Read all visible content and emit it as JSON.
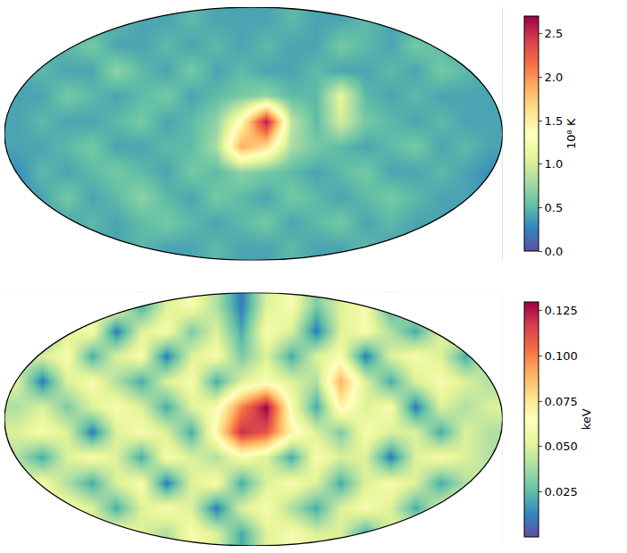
{
  "chart_data": [
    {
      "type": "heatmap",
      "tick_labels": false,
      "colorbar": {
        "title": "10⁸ K",
        "range": [
          0,
          2.7
        ],
        "ticks": [
          {
            "value": 0,
            "label": "0.0"
          },
          {
            "value": 0.5,
            "label": "0.5"
          },
          {
            "value": 1,
            "label": "1.0"
          },
          {
            "value": 1.5,
            "label": "1.5"
          },
          {
            "value": 2,
            "label": "2.0"
          },
          {
            "value": 2.5,
            "label": "2.5"
          }
        ]
      },
      "cells": [
        [
          0.3,
          0.3,
          0.4,
          0.4,
          0.5,
          0.4,
          0.4,
          0.5,
          0.4,
          0.4,
          0.4,
          0.5,
          0.4,
          0.4,
          0.5,
          0.4,
          0.4,
          0.3,
          0.3,
          0.3
        ],
        [
          0.3,
          0.4,
          0.5,
          0.6,
          0.4,
          0.4,
          0.5,
          0.4,
          0.5,
          0.4,
          0.5,
          0.4,
          0.4,
          0.6,
          0.5,
          0.4,
          0.6,
          0.5,
          0.4,
          0.3
        ],
        [
          0.4,
          0.5,
          0.4,
          0.4,
          0.7,
          0.5,
          0.4,
          0.6,
          0.4,
          0.5,
          0.4,
          0.4,
          0.5,
          0.4,
          0.4,
          0.5,
          0.4,
          0.6,
          0.5,
          0.4
        ],
        [
          0.4,
          0.4,
          0.6,
          0.5,
          0.4,
          0.5,
          0.6,
          0.4,
          0.5,
          0.6,
          0.7,
          0.5,
          0.5,
          1.1,
          0.5,
          0.4,
          0.5,
          0.4,
          0.4,
          0.4
        ],
        [
          0.4,
          0.5,
          0.4,
          0.4,
          0.5,
          0.6,
          0.4,
          0.5,
          0.7,
          1.4,
          2.6,
          0.9,
          0.5,
          1.0,
          0.6,
          0.5,
          0.4,
          0.5,
          0.4,
          0.4
        ],
        [
          0.4,
          0.4,
          0.5,
          0.6,
          0.4,
          0.4,
          0.5,
          0.5,
          0.8,
          1.9,
          1.6,
          0.8,
          0.6,
          0.5,
          0.4,
          0.5,
          0.6,
          0.4,
          0.5,
          0.4
        ],
        [
          0.3,
          0.5,
          0.4,
          0.5,
          0.6,
          0.5,
          0.4,
          0.6,
          0.5,
          0.7,
          0.6,
          0.5,
          0.4,
          0.5,
          0.6,
          0.4,
          0.4,
          0.5,
          0.4,
          0.3
        ],
        [
          0.3,
          0.4,
          0.6,
          0.4,
          0.5,
          0.7,
          0.5,
          0.4,
          0.6,
          0.5,
          0.4,
          0.6,
          0.5,
          0.4,
          0.5,
          0.6,
          0.5,
          0.4,
          0.4,
          0.3
        ],
        [
          0.3,
          0.4,
          0.4,
          0.5,
          0.4,
          0.5,
          0.6,
          0.5,
          0.4,
          0.5,
          0.6,
          0.4,
          0.5,
          0.6,
          0.4,
          0.5,
          0.4,
          0.4,
          0.3,
          0.3
        ],
        [
          0.3,
          0.3,
          0.4,
          0.4,
          0.4,
          0.5,
          0.4,
          0.4,
          0.5,
          0.4,
          0.4,
          0.5,
          0.4,
          0.4,
          0.5,
          0.4,
          0.4,
          0.3,
          0.3,
          0.3
        ]
      ]
    },
    {
      "type": "heatmap",
      "tick_labels": false,
      "colorbar": {
        "title": "keV",
        "range": [
          0,
          0.13
        ],
        "ticks": [
          0.025,
          {
            "value": 0.05,
            "label": "0.050"
          },
          0.075,
          {
            "value": 0.1,
            "label": "0.100"
          },
          0.125
        ]
      },
      "cells": [
        [
          0.04,
          0.05,
          0.03,
          0.05,
          0.06,
          0.02,
          0.05,
          0.06,
          0.04,
          0.01,
          0.05,
          0.06,
          0.03,
          0.05,
          0.06,
          0.02,
          0.05,
          0.04,
          0.05,
          0.04
        ],
        [
          0.05,
          0.02,
          0.05,
          0.06,
          0.01,
          0.05,
          0.06,
          0.03,
          0.05,
          0.02,
          0.06,
          0.05,
          0.01,
          0.05,
          0.06,
          0.04,
          0.02,
          0.05,
          0.06,
          0.04
        ],
        [
          0.04,
          0.05,
          0.06,
          0.02,
          0.05,
          0.06,
          0.01,
          0.05,
          0.06,
          0.03,
          0.05,
          0.02,
          0.05,
          0.06,
          0.01,
          0.05,
          0.06,
          0.05,
          0.02,
          0.05
        ],
        [
          0.05,
          0.01,
          0.05,
          0.06,
          0.04,
          0.02,
          0.05,
          0.06,
          0.02,
          0.05,
          0.06,
          0.05,
          0.04,
          0.09,
          0.05,
          0.02,
          0.05,
          0.06,
          0.05,
          0.04
        ],
        [
          0.04,
          0.05,
          0.03,
          0.05,
          0.06,
          0.05,
          0.02,
          0.05,
          0.06,
          0.1,
          0.13,
          0.06,
          0.02,
          0.07,
          0.05,
          0.06,
          0.01,
          0.05,
          0.04,
          0.05
        ],
        [
          0.05,
          0.06,
          0.05,
          0.01,
          0.05,
          0.06,
          0.05,
          0.02,
          0.07,
          0.12,
          0.11,
          0.07,
          0.05,
          0.03,
          0.06,
          0.05,
          0.05,
          0.02,
          0.05,
          0.04
        ],
        [
          0.04,
          0.02,
          0.05,
          0.06,
          0.05,
          0.02,
          0.06,
          0.05,
          0.04,
          0.06,
          0.05,
          0.02,
          0.06,
          0.05,
          0.05,
          0.01,
          0.05,
          0.06,
          0.05,
          0.04
        ],
        [
          0.05,
          0.06,
          0.04,
          0.02,
          0.05,
          0.06,
          0.01,
          0.05,
          0.06,
          0.02,
          0.05,
          0.06,
          0.05,
          0.02,
          0.05,
          0.06,
          0.05,
          0.02,
          0.04,
          0.05
        ],
        [
          0.04,
          0.05,
          0.06,
          0.05,
          0.02,
          0.05,
          0.06,
          0.05,
          0.01,
          0.05,
          0.06,
          0.04,
          0.02,
          0.05,
          0.06,
          0.05,
          0.02,
          0.05,
          0.06,
          0.04
        ],
        [
          0.05,
          0.04,
          0.02,
          0.05,
          0.06,
          0.05,
          0.04,
          0.06,
          0.05,
          0.02,
          0.05,
          0.06,
          0.05,
          0.05,
          0.02,
          0.05,
          0.06,
          0.04,
          0.05,
          0.05
        ]
      ]
    }
  ]
}
